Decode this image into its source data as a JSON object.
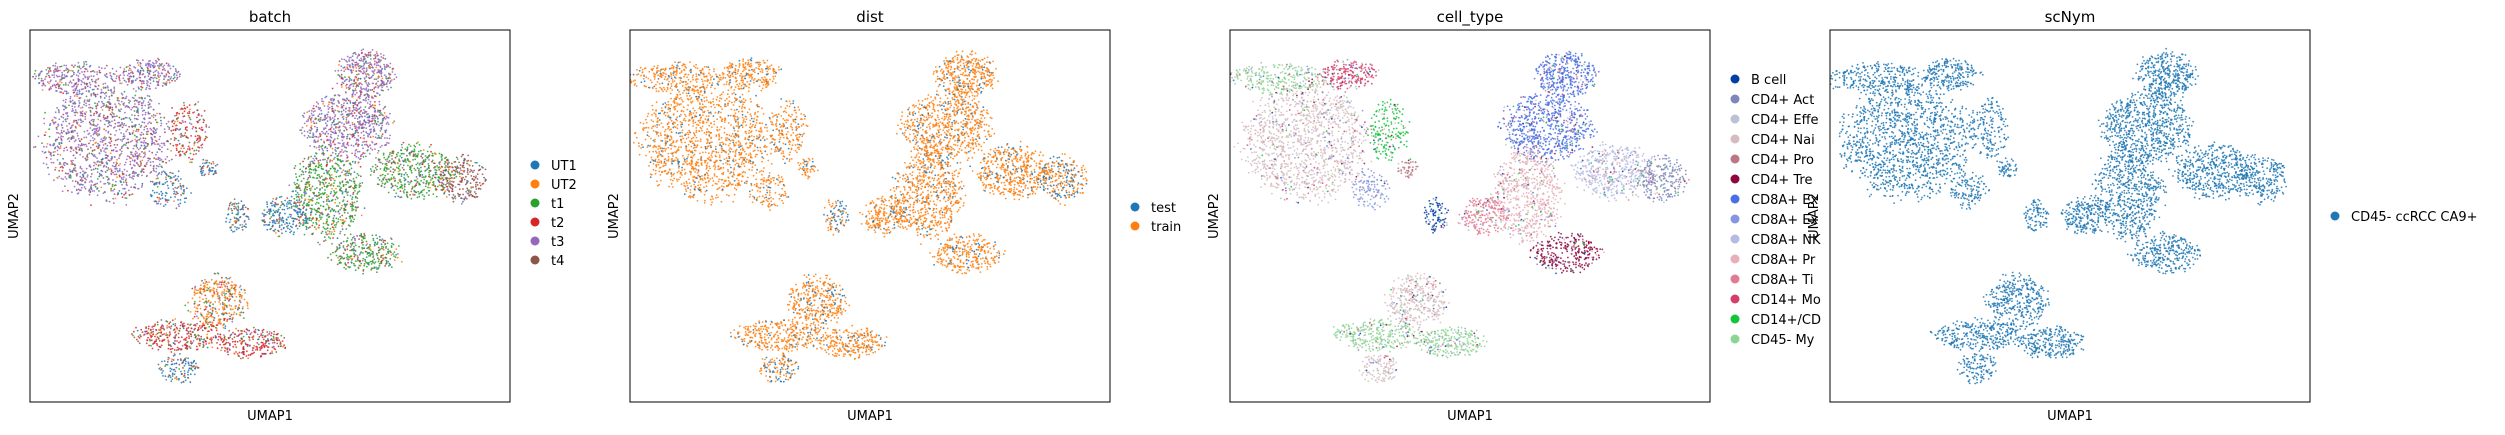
{
  "chart_data": [
    {
      "type": "scatter",
      "title": "batch",
      "xlabel": "UMAP1",
      "ylabel": "UMAP2",
      "grid": false,
      "legend_position": "right",
      "series": [
        {
          "name": "UT1",
          "color": "#1f77b4"
        },
        {
          "name": "UT2",
          "color": "#ff7f0e"
        },
        {
          "name": "t1",
          "color": "#2ca02c"
        },
        {
          "name": "t2",
          "color": "#d62728"
        },
        {
          "name": "t3",
          "color": "#9467bd"
        },
        {
          "name": "t4",
          "color": "#8c564b"
        }
      ]
    },
    {
      "type": "scatter",
      "title": "dist",
      "xlabel": "UMAP1",
      "ylabel": "UMAP2",
      "grid": false,
      "legend_position": "right",
      "series": [
        {
          "name": "test",
          "color": "#1f77b4"
        },
        {
          "name": "train",
          "color": "#ff7f0e"
        }
      ]
    },
    {
      "type": "scatter",
      "title": "cell_type",
      "xlabel": "UMAP1",
      "ylabel": "UMAP2",
      "grid": false,
      "legend_position": "right",
      "series": [
        {
          "name": "B cell",
          "color": "#023fa5"
        },
        {
          "name": "CD4+ Act",
          "color": "#7d87b9"
        },
        {
          "name": "CD4+ Effe",
          "color": "#bec1d4"
        },
        {
          "name": "CD4+ Nai",
          "color": "#d6bcc0"
        },
        {
          "name": "CD4+ Pro",
          "color": "#bb7784"
        },
        {
          "name": "CD4+ Tre",
          "color": "#8e063b"
        },
        {
          "name": "CD8A+ Ex",
          "color": "#4a6fe3"
        },
        {
          "name": "CD8A+ Ex",
          "color": "#8595e1"
        },
        {
          "name": "CD8A+ NK",
          "color": "#b5bbe3"
        },
        {
          "name": "CD8A+ Pr",
          "color": "#e6afb9"
        },
        {
          "name": "CD8A+ Ti",
          "color": "#e07b91"
        },
        {
          "name": "CD14+ Mo",
          "color": "#d33f6a"
        },
        {
          "name": "CD14+/CD",
          "color": "#11c638"
        },
        {
          "name": "CD45- My",
          "color": "#8dd593"
        }
      ]
    },
    {
      "type": "scatter",
      "title": "scNym",
      "xlabel": "UMAP1",
      "ylabel": "UMAP2",
      "grid": false,
      "legend_position": "right",
      "series": [
        {
          "name": "CD45- ccRCC CA9+",
          "color": "#1f77b4"
        }
      ]
    }
  ]
}
